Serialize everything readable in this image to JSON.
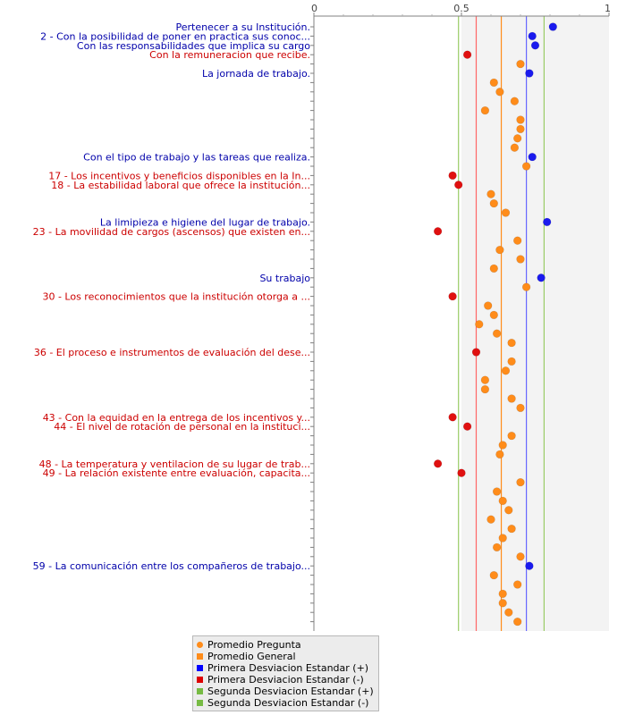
{
  "chart_data": {
    "type": "scatter",
    "orientation": "horizontal",
    "xlim": [
      0,
      1
    ],
    "x_ticks": [
      {
        "value": 0,
        "label": "0"
      },
      {
        "value": 0.5,
        "label": "0.5"
      },
      {
        "value": 1,
        "label": "1"
      }
    ],
    "grid": false,
    "shaded_band": [
      0.5,
      1
    ],
    "reference_lines": [
      {
        "key": "promedio_general",
        "value": 0.635,
        "color": "#ff8c1a"
      },
      {
        "key": "desv1_plus",
        "value": 0.72,
        "color": "#6666ff"
      },
      {
        "key": "desv1_minus",
        "value": 0.55,
        "color": "#ff6666"
      },
      {
        "key": "desv2_plus",
        "value": 0.78,
        "color": "#99cc66"
      },
      {
        "key": "desv2_minus",
        "value": 0.49,
        "color": "#99cc66"
      }
    ],
    "legend_position": "bottom",
    "legend": [
      {
        "label": "Promedio Pregunta",
        "color": "#ff8c1a",
        "shape": "circle"
      },
      {
        "label": "Promedio General",
        "color": "#ff8c1a",
        "shape": "square"
      },
      {
        "label": "Primera Desviacion Estandar (+)",
        "color": "#0000ff",
        "shape": "square"
      },
      {
        "label": "Primera Desviacion Estandar (-)",
        "color": "#dd0000",
        "shape": "square"
      },
      {
        "label": "Segunda Desviacion Estandar (+)",
        "color": "#77bb44",
        "shape": "square"
      },
      {
        "label": "Segunda Desviacion Estandar (-)",
        "color": "#77bb44",
        "shape": "square"
      }
    ],
    "category_colors": {
      "high": "#0000aa",
      "low": "#cc0000",
      "normal": "#ff8c1a"
    },
    "point_colors": {
      "high": "#1a1aee",
      "low": "#e01010",
      "normal": "#ff8c1a"
    },
    "points": [
      {
        "value": 0.81,
        "status": "high",
        "label": "Pertenecer a su Institución."
      },
      {
        "value": 0.74,
        "status": "high",
        "label": "2 - Con la posibilidad de poner en practica sus conoc..."
      },
      {
        "value": 0.75,
        "status": "high",
        "label": "Con las responsabilidades que implica su cargo"
      },
      {
        "value": 0.52,
        "status": "low",
        "label": "Con la remuneracion que recibe."
      },
      {
        "value": 0.7,
        "status": "normal",
        "label": ""
      },
      {
        "value": 0.73,
        "status": "high",
        "label": "La jornada de trabajo."
      },
      {
        "value": 0.61,
        "status": "normal",
        "label": ""
      },
      {
        "value": 0.63,
        "status": "normal",
        "label": ""
      },
      {
        "value": 0.68,
        "status": "normal",
        "label": ""
      },
      {
        "value": 0.58,
        "status": "normal",
        "label": ""
      },
      {
        "value": 0.7,
        "status": "normal",
        "label": ""
      },
      {
        "value": 0.7,
        "status": "normal",
        "label": ""
      },
      {
        "value": 0.69,
        "status": "normal",
        "label": ""
      },
      {
        "value": 0.68,
        "status": "normal",
        "label": ""
      },
      {
        "value": 0.74,
        "status": "high",
        "label": "Con el tipo de trabajo y las tareas que realiza."
      },
      {
        "value": 0.72,
        "status": "normal",
        "label": ""
      },
      {
        "value": 0.47,
        "status": "low",
        "label": "17 - Los incentivos y beneficios disponibles en la In..."
      },
      {
        "value": 0.49,
        "status": "low",
        "label": "18 - La estabilidad laboral que ofrece la institución..."
      },
      {
        "value": 0.6,
        "status": "normal",
        "label": ""
      },
      {
        "value": 0.61,
        "status": "normal",
        "label": ""
      },
      {
        "value": 0.65,
        "status": "normal",
        "label": ""
      },
      {
        "value": 0.79,
        "status": "high",
        "label": "La limipieza e higiene del lugar de trabajo."
      },
      {
        "value": 0.42,
        "status": "low",
        "label": "23 - La movilidad de cargos (ascensos) que existen en..."
      },
      {
        "value": 0.69,
        "status": "normal",
        "label": ""
      },
      {
        "value": 0.63,
        "status": "normal",
        "label": ""
      },
      {
        "value": 0.7,
        "status": "normal",
        "label": ""
      },
      {
        "value": 0.61,
        "status": "normal",
        "label": ""
      },
      {
        "value": 0.77,
        "status": "high",
        "label": "Su trabajo"
      },
      {
        "value": 0.72,
        "status": "normal",
        "label": ""
      },
      {
        "value": 0.47,
        "status": "low",
        "label": "30 - Los reconocimientos que la institución otorga a ..."
      },
      {
        "value": 0.59,
        "status": "normal",
        "label": ""
      },
      {
        "value": 0.61,
        "status": "normal",
        "label": ""
      },
      {
        "value": 0.56,
        "status": "normal",
        "label": ""
      },
      {
        "value": 0.62,
        "status": "normal",
        "label": ""
      },
      {
        "value": 0.67,
        "status": "normal",
        "label": ""
      },
      {
        "value": 0.55,
        "status": "low",
        "label": "36 - El proceso e instrumentos de evaluación del dese..."
      },
      {
        "value": 0.67,
        "status": "normal",
        "label": ""
      },
      {
        "value": 0.65,
        "status": "normal",
        "label": ""
      },
      {
        "value": 0.58,
        "status": "normal",
        "label": ""
      },
      {
        "value": 0.58,
        "status": "normal",
        "label": ""
      },
      {
        "value": 0.67,
        "status": "normal",
        "label": ""
      },
      {
        "value": 0.7,
        "status": "normal",
        "label": ""
      },
      {
        "value": 0.47,
        "status": "low",
        "label": "43 - Con la equidad en la entrega de los incentivos y..."
      },
      {
        "value": 0.52,
        "status": "low",
        "label": "44 - El nivel de rotación de personal en la instituci..."
      },
      {
        "value": 0.67,
        "status": "normal",
        "label": ""
      },
      {
        "value": 0.64,
        "status": "normal",
        "label": ""
      },
      {
        "value": 0.63,
        "status": "normal",
        "label": ""
      },
      {
        "value": 0.42,
        "status": "low",
        "label": "48 - La temperatura y ventilacion de su lugar de trab..."
      },
      {
        "value": 0.5,
        "status": "low",
        "label": "49 - La relación existente entre evaluación, capacita..."
      },
      {
        "value": 0.7,
        "status": "normal",
        "label": ""
      },
      {
        "value": 0.62,
        "status": "normal",
        "label": ""
      },
      {
        "value": 0.64,
        "status": "normal",
        "label": ""
      },
      {
        "value": 0.66,
        "status": "normal",
        "label": ""
      },
      {
        "value": 0.6,
        "status": "normal",
        "label": ""
      },
      {
        "value": 0.67,
        "status": "normal",
        "label": ""
      },
      {
        "value": 0.64,
        "status": "normal",
        "label": ""
      },
      {
        "value": 0.62,
        "status": "normal",
        "label": ""
      },
      {
        "value": 0.7,
        "status": "normal",
        "label": ""
      },
      {
        "value": 0.73,
        "status": "high",
        "label": "59 - La comunicación entre los compañeros de trabajo..."
      },
      {
        "value": 0.61,
        "status": "normal",
        "label": ""
      },
      {
        "value": 0.69,
        "status": "normal",
        "label": ""
      },
      {
        "value": 0.64,
        "status": "normal",
        "label": ""
      },
      {
        "value": 0.64,
        "status": "normal",
        "label": ""
      },
      {
        "value": 0.66,
        "status": "normal",
        "label": ""
      },
      {
        "value": 0.69,
        "status": "normal",
        "label": ""
      }
    ]
  }
}
